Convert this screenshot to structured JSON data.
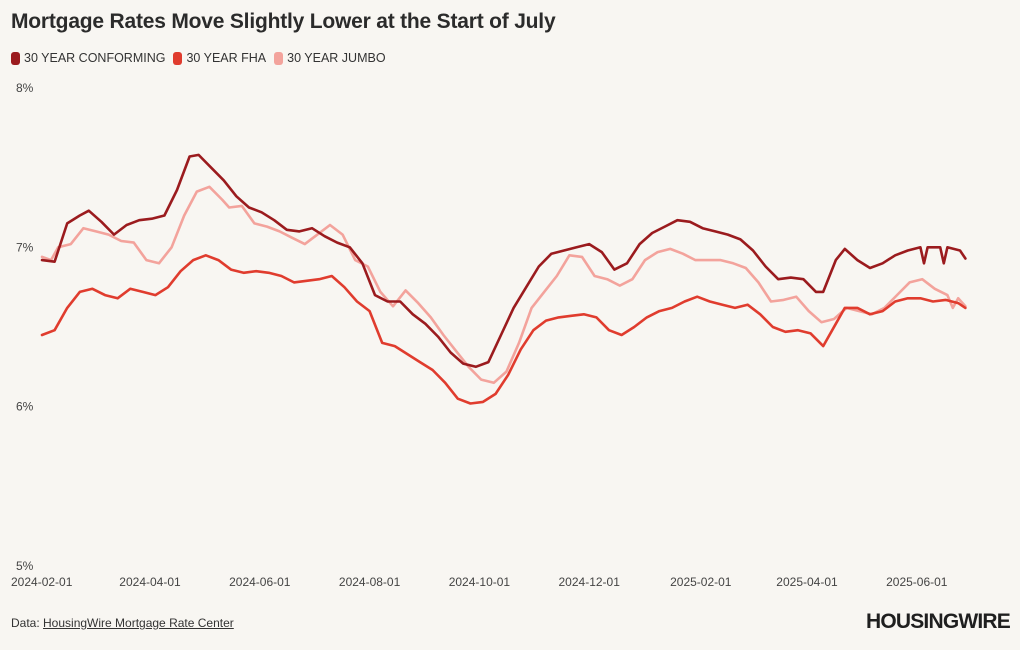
{
  "title": "Mortgage Rates Move Slightly Lower at the Start of July",
  "legend": [
    {
      "label": "30 YEAR CONFORMING",
      "color": "#9b1b1e"
    },
    {
      "label": "30 YEAR FHA",
      "color": "#e03c2e"
    },
    {
      "label": "30 YEAR JUMBO",
      "color": "#f3a39c"
    }
  ],
  "footer": {
    "prefix": "Data: ",
    "link_text": "HousingWire Mortgage Rate Center"
  },
  "logo_text": "HOUSINGWIRE",
  "chart_data": {
    "type": "line",
    "title": "Mortgage Rates Move Slightly Lower at the Start of July",
    "xlabel": "",
    "ylabel": "",
    "ylim": [
      5,
      8
    ],
    "xlim": [
      "2024-02-01",
      "2025-07-05"
    ],
    "y_ticks": [
      {
        "value": 8,
        "label": "8%"
      },
      {
        "value": 7,
        "label": "7%"
      },
      {
        "value": 6,
        "label": "6%"
      },
      {
        "value": 5,
        "label": "5%"
      }
    ],
    "x_ticks": [
      "2024-02-01",
      "2024-04-01",
      "2024-06-01",
      "2024-08-01",
      "2024-10-01",
      "2024-12-01",
      "2025-02-01",
      "2025-04-01",
      "2025-06-01"
    ],
    "grid": false,
    "legend_position": "top-left",
    "series": [
      {
        "name": "30 YEAR CONFORMING",
        "color": "#9b1b1e",
        "points": [
          [
            "2024-02-01",
            6.92
          ],
          [
            "2024-02-08",
            6.91
          ],
          [
            "2024-02-15",
            7.15
          ],
          [
            "2024-02-22",
            7.2
          ],
          [
            "2024-02-27",
            7.23
          ],
          [
            "2024-03-05",
            7.16
          ],
          [
            "2024-03-12",
            7.08
          ],
          [
            "2024-03-19",
            7.14
          ],
          [
            "2024-03-26",
            7.17
          ],
          [
            "2024-04-02",
            7.18
          ],
          [
            "2024-04-09",
            7.2
          ],
          [
            "2024-04-16",
            7.36
          ],
          [
            "2024-04-23",
            7.57
          ],
          [
            "2024-04-28",
            7.58
          ],
          [
            "2024-05-05",
            7.5
          ],
          [
            "2024-05-12",
            7.42
          ],
          [
            "2024-05-19",
            7.32
          ],
          [
            "2024-05-26",
            7.25
          ],
          [
            "2024-06-02",
            7.22
          ],
          [
            "2024-06-09",
            7.17
          ],
          [
            "2024-06-16",
            7.11
          ],
          [
            "2024-06-23",
            7.1
          ],
          [
            "2024-06-30",
            7.12
          ],
          [
            "2024-07-07",
            7.07
          ],
          [
            "2024-07-14",
            7.03
          ],
          [
            "2024-07-21",
            7.0
          ],
          [
            "2024-07-28",
            6.9
          ],
          [
            "2024-08-04",
            6.7
          ],
          [
            "2024-08-11",
            6.66
          ],
          [
            "2024-08-18",
            6.66
          ],
          [
            "2024-08-25",
            6.58
          ],
          [
            "2024-09-01",
            6.52
          ],
          [
            "2024-09-08",
            6.44
          ],
          [
            "2024-09-15",
            6.34
          ],
          [
            "2024-09-22",
            6.27
          ],
          [
            "2024-09-29",
            6.25
          ],
          [
            "2024-10-06",
            6.28
          ],
          [
            "2024-10-13",
            6.45
          ],
          [
            "2024-10-20",
            6.62
          ],
          [
            "2024-10-27",
            6.75
          ],
          [
            "2024-11-03",
            6.88
          ],
          [
            "2024-11-10",
            6.96
          ],
          [
            "2024-11-17",
            6.98
          ],
          [
            "2024-11-24",
            7.0
          ],
          [
            "2024-12-01",
            7.02
          ],
          [
            "2024-12-08",
            6.97
          ],
          [
            "2024-12-15",
            6.86
          ],
          [
            "2024-12-22",
            6.9
          ],
          [
            "2024-12-29",
            7.02
          ],
          [
            "2025-01-05",
            7.09
          ],
          [
            "2025-01-12",
            7.13
          ],
          [
            "2025-01-19",
            7.17
          ],
          [
            "2025-01-26",
            7.16
          ],
          [
            "2025-02-02",
            7.12
          ],
          [
            "2025-02-09",
            7.1
          ],
          [
            "2025-02-16",
            7.08
          ],
          [
            "2025-02-23",
            7.05
          ],
          [
            "2025-03-02",
            6.98
          ],
          [
            "2025-03-09",
            6.88
          ],
          [
            "2025-03-16",
            6.8
          ],
          [
            "2025-03-23",
            6.81
          ],
          [
            "2025-03-30",
            6.8
          ],
          [
            "2025-04-06",
            6.72
          ],
          [
            "2025-04-10",
            6.72
          ],
          [
            "2025-04-17",
            6.92
          ],
          [
            "2025-04-22",
            6.99
          ],
          [
            "2025-04-29",
            6.92
          ],
          [
            "2025-05-06",
            6.87
          ],
          [
            "2025-05-13",
            6.9
          ],
          [
            "2025-05-20",
            6.95
          ],
          [
            "2025-05-27",
            6.98
          ],
          [
            "2025-06-03",
            7.0
          ],
          [
            "2025-06-05",
            6.9
          ],
          [
            "2025-06-07",
            7.0
          ],
          [
            "2025-06-14",
            7.0
          ],
          [
            "2025-06-16",
            6.9
          ],
          [
            "2025-06-18",
            7.0
          ],
          [
            "2025-06-25",
            6.98
          ],
          [
            "2025-06-28",
            6.93
          ]
        ]
      },
      {
        "name": "30 YEAR FHA",
        "color": "#e03c2e",
        "points": [
          [
            "2024-02-01",
            6.45
          ],
          [
            "2024-02-08",
            6.48
          ],
          [
            "2024-02-15",
            6.62
          ],
          [
            "2024-02-22",
            6.72
          ],
          [
            "2024-02-29",
            6.74
          ],
          [
            "2024-03-07",
            6.7
          ],
          [
            "2024-03-14",
            6.68
          ],
          [
            "2024-03-21",
            6.74
          ],
          [
            "2024-03-28",
            6.72
          ],
          [
            "2024-04-04",
            6.7
          ],
          [
            "2024-04-11",
            6.75
          ],
          [
            "2024-04-18",
            6.85
          ],
          [
            "2024-04-25",
            6.92
          ],
          [
            "2024-05-02",
            6.95
          ],
          [
            "2024-05-09",
            6.92
          ],
          [
            "2024-05-16",
            6.86
          ],
          [
            "2024-05-23",
            6.84
          ],
          [
            "2024-05-30",
            6.85
          ],
          [
            "2024-06-06",
            6.84
          ],
          [
            "2024-06-13",
            6.82
          ],
          [
            "2024-06-20",
            6.78
          ],
          [
            "2024-06-27",
            6.79
          ],
          [
            "2024-07-04",
            6.8
          ],
          [
            "2024-07-11",
            6.82
          ],
          [
            "2024-07-18",
            6.75
          ],
          [
            "2024-07-25",
            6.66
          ],
          [
            "2024-08-01",
            6.6
          ],
          [
            "2024-08-08",
            6.4
          ],
          [
            "2024-08-15",
            6.38
          ],
          [
            "2024-08-22",
            6.33
          ],
          [
            "2024-08-29",
            6.28
          ],
          [
            "2024-09-05",
            6.23
          ],
          [
            "2024-09-12",
            6.15
          ],
          [
            "2024-09-19",
            6.05
          ],
          [
            "2024-09-26",
            6.02
          ],
          [
            "2024-10-03",
            6.03
          ],
          [
            "2024-10-10",
            6.08
          ],
          [
            "2024-10-17",
            6.2
          ],
          [
            "2024-10-24",
            6.36
          ],
          [
            "2024-10-31",
            6.48
          ],
          [
            "2024-11-07",
            6.54
          ],
          [
            "2024-11-14",
            6.56
          ],
          [
            "2024-11-21",
            6.57
          ],
          [
            "2024-11-28",
            6.58
          ],
          [
            "2024-12-05",
            6.56
          ],
          [
            "2024-12-12",
            6.48
          ],
          [
            "2024-12-19",
            6.45
          ],
          [
            "2024-12-26",
            6.5
          ],
          [
            "2025-01-02",
            6.56
          ],
          [
            "2025-01-09",
            6.6
          ],
          [
            "2025-01-16",
            6.62
          ],
          [
            "2025-01-23",
            6.66
          ],
          [
            "2025-01-30",
            6.69
          ],
          [
            "2025-02-06",
            6.66
          ],
          [
            "2025-02-13",
            6.64
          ],
          [
            "2025-02-20",
            6.62
          ],
          [
            "2025-02-27",
            6.64
          ],
          [
            "2025-03-06",
            6.58
          ],
          [
            "2025-03-13",
            6.5
          ],
          [
            "2025-03-20",
            6.47
          ],
          [
            "2025-03-27",
            6.48
          ],
          [
            "2025-04-03",
            6.46
          ],
          [
            "2025-04-10",
            6.38
          ],
          [
            "2025-04-17",
            6.52
          ],
          [
            "2025-04-22",
            6.62
          ],
          [
            "2025-04-29",
            6.62
          ],
          [
            "2025-05-06",
            6.58
          ],
          [
            "2025-05-13",
            6.6
          ],
          [
            "2025-05-20",
            6.66
          ],
          [
            "2025-05-27",
            6.68
          ],
          [
            "2025-06-03",
            6.68
          ],
          [
            "2025-06-10",
            6.66
          ],
          [
            "2025-06-17",
            6.67
          ],
          [
            "2025-06-24",
            6.65
          ],
          [
            "2025-06-28",
            6.62
          ]
        ]
      },
      {
        "name": "30 YEAR JUMBO",
        "color": "#f3a39c",
        "points": [
          [
            "2024-02-01",
            6.94
          ],
          [
            "2024-02-06",
            6.92
          ],
          [
            "2024-02-10",
            7.0
          ],
          [
            "2024-02-17",
            7.02
          ],
          [
            "2024-02-24",
            7.12
          ],
          [
            "2024-03-02",
            7.1
          ],
          [
            "2024-03-09",
            7.08
          ],
          [
            "2024-03-16",
            7.04
          ],
          [
            "2024-03-23",
            7.03
          ],
          [
            "2024-03-30",
            6.92
          ],
          [
            "2024-04-06",
            6.9
          ],
          [
            "2024-04-13",
            7.0
          ],
          [
            "2024-04-20",
            7.2
          ],
          [
            "2024-04-27",
            7.35
          ],
          [
            "2024-05-04",
            7.38
          ],
          [
            "2024-05-11",
            7.3
          ],
          [
            "2024-05-15",
            7.25
          ],
          [
            "2024-05-22",
            7.26
          ],
          [
            "2024-05-29",
            7.15
          ],
          [
            "2024-06-05",
            7.13
          ],
          [
            "2024-06-12",
            7.1
          ],
          [
            "2024-06-19",
            7.06
          ],
          [
            "2024-06-26",
            7.02
          ],
          [
            "2024-07-03",
            7.08
          ],
          [
            "2024-07-10",
            7.14
          ],
          [
            "2024-07-17",
            7.08
          ],
          [
            "2024-07-24",
            6.92
          ],
          [
            "2024-07-31",
            6.88
          ],
          [
            "2024-08-07",
            6.72
          ],
          [
            "2024-08-14",
            6.63
          ],
          [
            "2024-08-21",
            6.73
          ],
          [
            "2024-08-28",
            6.65
          ],
          [
            "2024-09-04",
            6.56
          ],
          [
            "2024-09-11",
            6.45
          ],
          [
            "2024-09-18",
            6.35
          ],
          [
            "2024-09-25",
            6.25
          ],
          [
            "2024-10-02",
            6.17
          ],
          [
            "2024-10-09",
            6.15
          ],
          [
            "2024-10-16",
            6.22
          ],
          [
            "2024-10-23",
            6.4
          ],
          [
            "2024-10-30",
            6.62
          ],
          [
            "2024-11-06",
            6.72
          ],
          [
            "2024-11-13",
            6.82
          ],
          [
            "2024-11-20",
            6.95
          ],
          [
            "2024-11-27",
            6.94
          ],
          [
            "2024-12-04",
            6.82
          ],
          [
            "2024-12-11",
            6.8
          ],
          [
            "2024-12-18",
            6.76
          ],
          [
            "2024-12-25",
            6.8
          ],
          [
            "2025-01-01",
            6.92
          ],
          [
            "2025-01-08",
            6.97
          ],
          [
            "2025-01-15",
            6.99
          ],
          [
            "2025-01-22",
            6.96
          ],
          [
            "2025-01-29",
            6.92
          ],
          [
            "2025-02-05",
            6.92
          ],
          [
            "2025-02-12",
            6.92
          ],
          [
            "2025-02-19",
            6.9
          ],
          [
            "2025-02-26",
            6.87
          ],
          [
            "2025-03-05",
            6.78
          ],
          [
            "2025-03-12",
            6.66
          ],
          [
            "2025-03-19",
            6.67
          ],
          [
            "2025-03-26",
            6.69
          ],
          [
            "2025-04-02",
            6.6
          ],
          [
            "2025-04-09",
            6.53
          ],
          [
            "2025-04-16",
            6.55
          ],
          [
            "2025-04-23",
            6.62
          ],
          [
            "2025-04-30",
            6.6
          ],
          [
            "2025-05-07",
            6.58
          ],
          [
            "2025-05-14",
            6.62
          ],
          [
            "2025-05-21",
            6.7
          ],
          [
            "2025-05-28",
            6.78
          ],
          [
            "2025-06-04",
            6.8
          ],
          [
            "2025-06-11",
            6.74
          ],
          [
            "2025-06-18",
            6.7
          ],
          [
            "2025-06-21",
            6.62
          ],
          [
            "2025-06-24",
            6.68
          ],
          [
            "2025-06-28",
            6.63
          ]
        ]
      }
    ]
  }
}
